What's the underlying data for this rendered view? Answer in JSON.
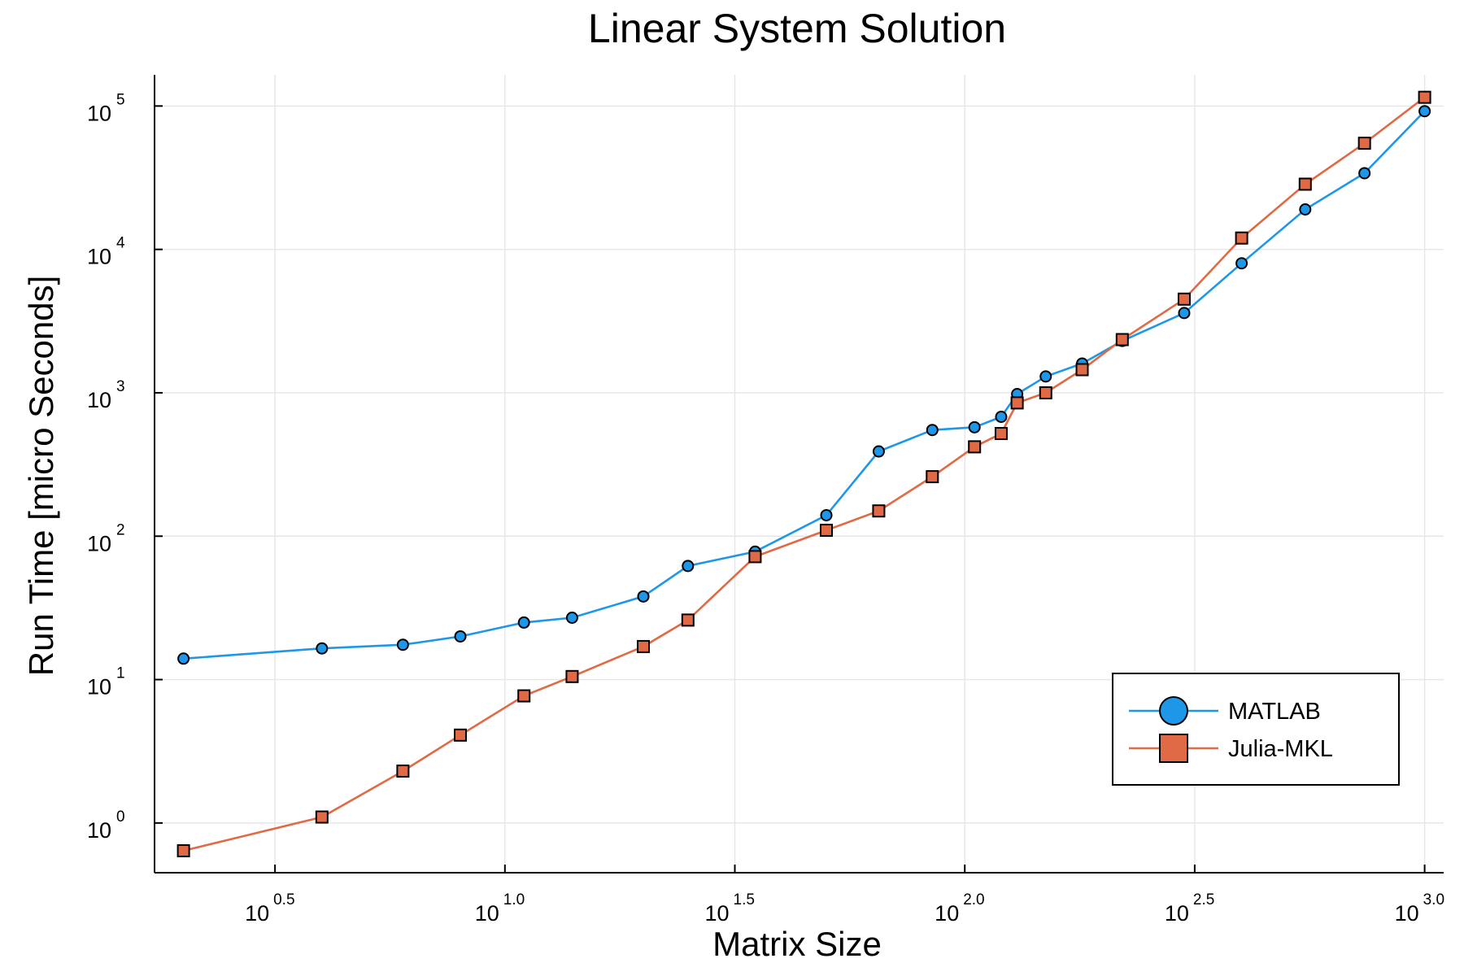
{
  "chart_data": {
    "type": "line",
    "title": "Linear System Solution",
    "xlabel": "Matrix Size",
    "ylabel": "Run Time  [micro Seconds]",
    "x_scale": "log10",
    "y_scale": "log10",
    "xlim": [
      1.73,
      1100
    ],
    "ylim": [
      0.45,
      165000
    ],
    "x_ticks": [
      {
        "base": "10",
        "exp": "0.5",
        "value": 3.1623
      },
      {
        "base": "10",
        "exp": "1.0",
        "value": 10
      },
      {
        "base": "10",
        "exp": "1.5",
        "value": 31.623
      },
      {
        "base": "10",
        "exp": "2.0",
        "value": 100
      },
      {
        "base": "10",
        "exp": "2.5",
        "value": 316.23
      },
      {
        "base": "10",
        "exp": "3.0",
        "value": 1000
      }
    ],
    "y_ticks": [
      {
        "base": "10",
        "exp": "0",
        "value": 1
      },
      {
        "base": "10",
        "exp": "1",
        "value": 10
      },
      {
        "base": "10",
        "exp": "2",
        "value": 100
      },
      {
        "base": "10",
        "exp": "3",
        "value": 1000
      },
      {
        "base": "10",
        "exp": "4",
        "value": 10000
      },
      {
        "base": "10",
        "exp": "5",
        "value": 100000
      }
    ],
    "grid": true,
    "legend_position": "bottom-right",
    "x": [
      2,
      4,
      6,
      8,
      11,
      14,
      20,
      25,
      35,
      50,
      65,
      85,
      105,
      120,
      130,
      150,
      180,
      220,
      300,
      400,
      550,
      740,
      1000
    ],
    "series": [
      {
        "name": "MATLAB",
        "marker": "circle",
        "color": "#1f97e8",
        "values": [
          14,
          16.5,
          17.5,
          20,
          25,
          27,
          38,
          62,
          78,
          140,
          390,
          550,
          575,
          680,
          980,
          1300,
          1600,
          2300,
          3600,
          8000,
          19000,
          34000,
          92000
        ]
      },
      {
        "name": "Julia-MKL",
        "marker": "square",
        "color": "#e06a45",
        "values": [
          0.64,
          1.1,
          2.3,
          4.1,
          7.7,
          10.5,
          17,
          26,
          72,
          110,
          150,
          260,
          420,
          520,
          850,
          1000,
          1450,
          2350,
          4500,
          12000,
          28500,
          55000,
          115000
        ]
      }
    ]
  }
}
